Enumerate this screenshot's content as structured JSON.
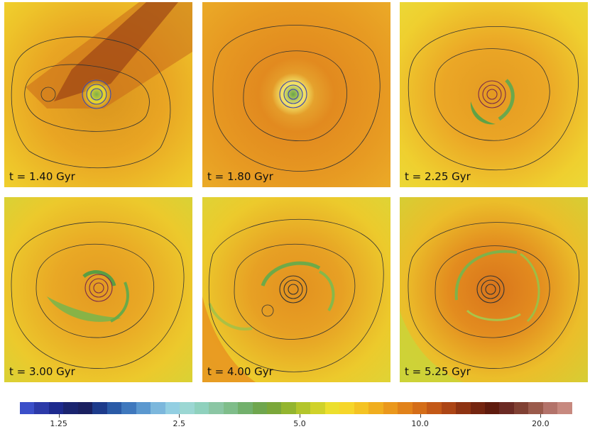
{
  "panels": [
    {
      "label": "t = 1.40 Gyr",
      "style": "tail"
    },
    {
      "label": "t = 1.80 Gyr",
      "style": "orange"
    },
    {
      "label": "t = 2.25 Gyr",
      "style": "yellow-arc"
    },
    {
      "label": "t = 3.00 Gyr",
      "style": "green-spiral"
    },
    {
      "label": "t = 4.00 Gyr",
      "style": "wide-spiral"
    },
    {
      "label": "t = 5.25 Gyr",
      "style": "ring"
    }
  ],
  "colorbar": {
    "scale": "log",
    "range": [
      1.0,
      24.0
    ],
    "colors": [
      "#3b4fc9",
      "#2c3aa8",
      "#1d2a8e",
      "#1a246f",
      "#1a2060",
      "#1d3b8b",
      "#2a5aa6",
      "#3f78bd",
      "#5b98cf",
      "#7cb7dc",
      "#93cfe2",
      "#9bd7d3",
      "#8fd1bd",
      "#8bc6a4",
      "#7fbd8a",
      "#72b06c",
      "#6fa64e",
      "#7ba73a",
      "#93b52f",
      "#b3c52b",
      "#d0d22a",
      "#ecdf2d",
      "#f6d62a",
      "#f4c323",
      "#f0ae1f",
      "#ea981c",
      "#e1821a",
      "#d46d18",
      "#c35817",
      "#ac4515",
      "#8e3312",
      "#742510",
      "#5f1b0e",
      "#6b2a24",
      "#804033",
      "#9a5a4b",
      "#b3736a",
      "#c7897f"
    ],
    "ticks": [
      {
        "value": 1.25,
        "label": "1.25"
      },
      {
        "value": 2.5,
        "label": "2.5"
      },
      {
        "value": 5.0,
        "label": "5.0"
      },
      {
        "value": 10.0,
        "label": "10.0"
      },
      {
        "value": 20.0,
        "label": "20.0"
      }
    ]
  }
}
